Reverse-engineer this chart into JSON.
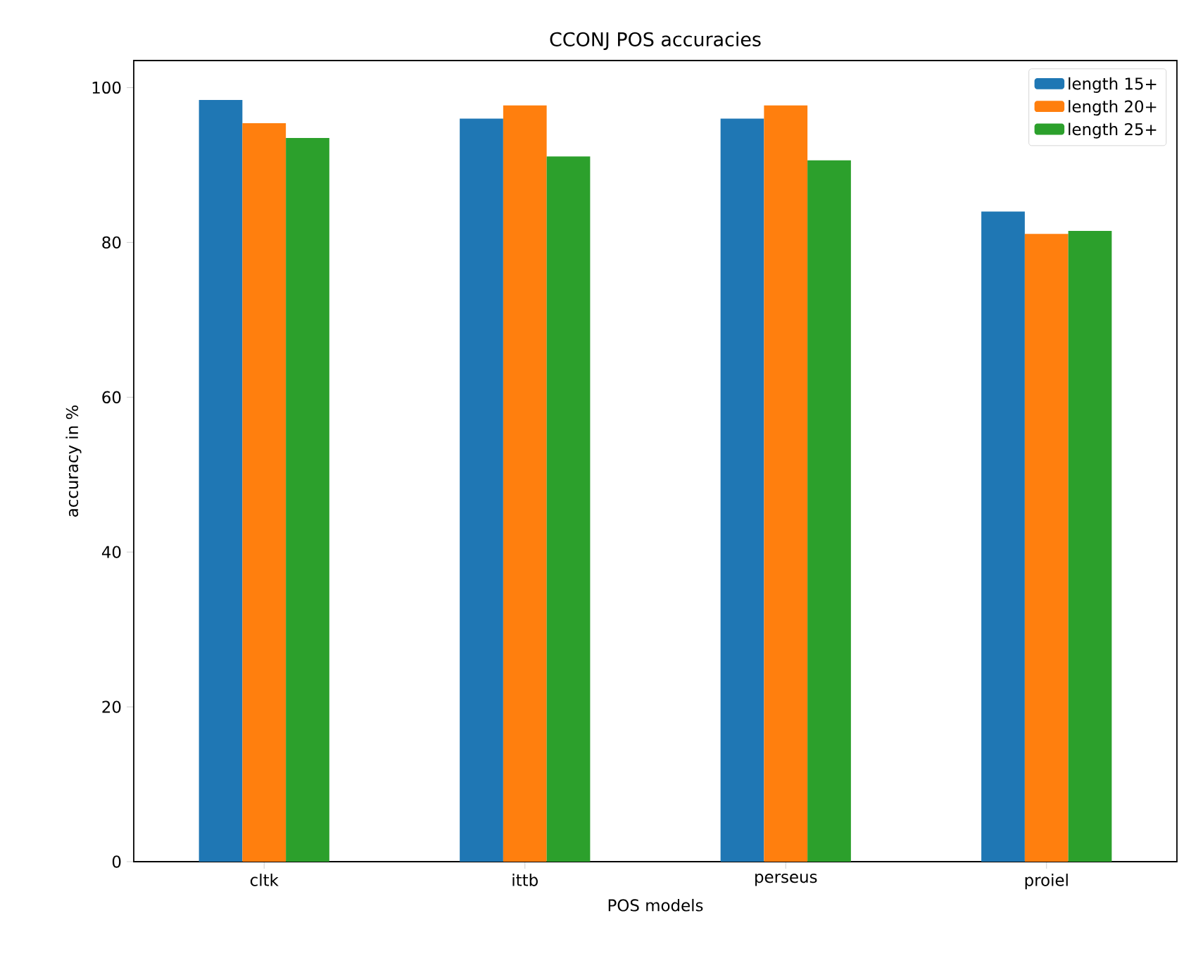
{
  "chart_data": {
    "type": "bar",
    "title": "CCONJ POS accuracies",
    "xlabel": "POS models",
    "ylabel": "accuracy in %",
    "categories": [
      "cltk",
      "ittb",
      "perseus",
      "proiel"
    ],
    "series": [
      {
        "name": "length 15+",
        "color": "#1f77b4",
        "values": [
          98.4,
          96.0,
          96.0,
          84
        ]
      },
      {
        "name": "length 20+",
        "color": "#ff7f0e",
        "values": [
          95.4,
          97.7,
          97.7,
          81.1
        ]
      },
      {
        "name": "length 25+",
        "color": "#2ca02c",
        "values": [
          93.5,
          91.1,
          90.6,
          81.5
        ]
      }
    ],
    "ylim": [
      0,
      103.5
    ],
    "yticks": [
      0,
      20,
      40,
      60,
      80,
      100
    ],
    "legend": "top right"
  }
}
